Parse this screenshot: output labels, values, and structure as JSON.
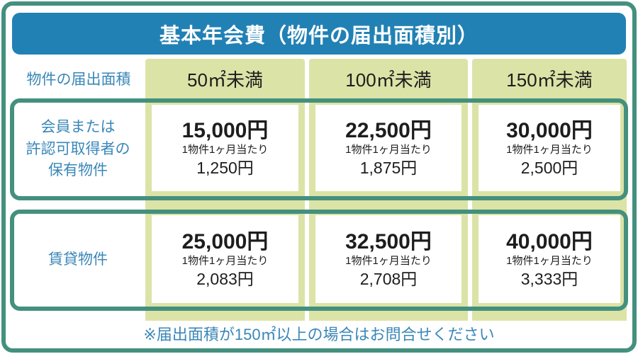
{
  "title": "基本年会費（物件の届出面積別）",
  "header": {
    "corner_label": "物件の届出面積",
    "columns": [
      "50㎡未満",
      "100㎡未満",
      "150㎡未満"
    ]
  },
  "per_unit_label": "1物件1ヶ月当たり",
  "rows": [
    {
      "label_lines": [
        "会員または",
        "許認可取得者の",
        "保有物件"
      ],
      "cells": [
        {
          "annual": "15,000円",
          "monthly": "1,250円"
        },
        {
          "annual": "22,500円",
          "monthly": "1,875円"
        },
        {
          "annual": "30,000円",
          "monthly": "2,500円"
        }
      ]
    },
    {
      "label_lines": [
        "賃貸物件"
      ],
      "cells": [
        {
          "annual": "25,000円",
          "monthly": "2,083円"
        },
        {
          "annual": "32,500円",
          "monthly": "2,708円"
        },
        {
          "annual": "40,000円",
          "monthly": "3,333円"
        }
      ]
    }
  ],
  "footnote": "※届出面積が150㎡以上の場合はお問合せください",
  "colors": {
    "frame_teal": "#44907e",
    "title_blue": "#2281b4",
    "cell_green": "#dce3a6",
    "label_blue": "#3a87b8",
    "value_black": "#1d1d1d"
  },
  "chart_data": {
    "type": "table",
    "title": "基本年会費（物件の届出面積別）",
    "columns": [
      "物件の届出面積",
      "50㎡未満",
      "100㎡未満",
      "150㎡未満"
    ],
    "rows": [
      [
        "会員または許認可取得者の保有物件",
        "年額 15,000円（1物件1ヶ月当たり 1,250円）",
        "年額 22,500円（1物件1ヶ月当たり 1,875円）",
        "年額 30,000円（1物件1ヶ月当たり 2,500円）"
      ],
      [
        "賃貸物件",
        "年額 25,000円（1物件1ヶ月当たり 2,083円）",
        "年額 32,500円（1物件1ヶ月当たり 2,708円）",
        "年額 40,000円（1物件1ヶ月当たり 3,333円）"
      ]
    ],
    "footnote": "※届出面積が150㎡以上の場合はお問合せください"
  }
}
